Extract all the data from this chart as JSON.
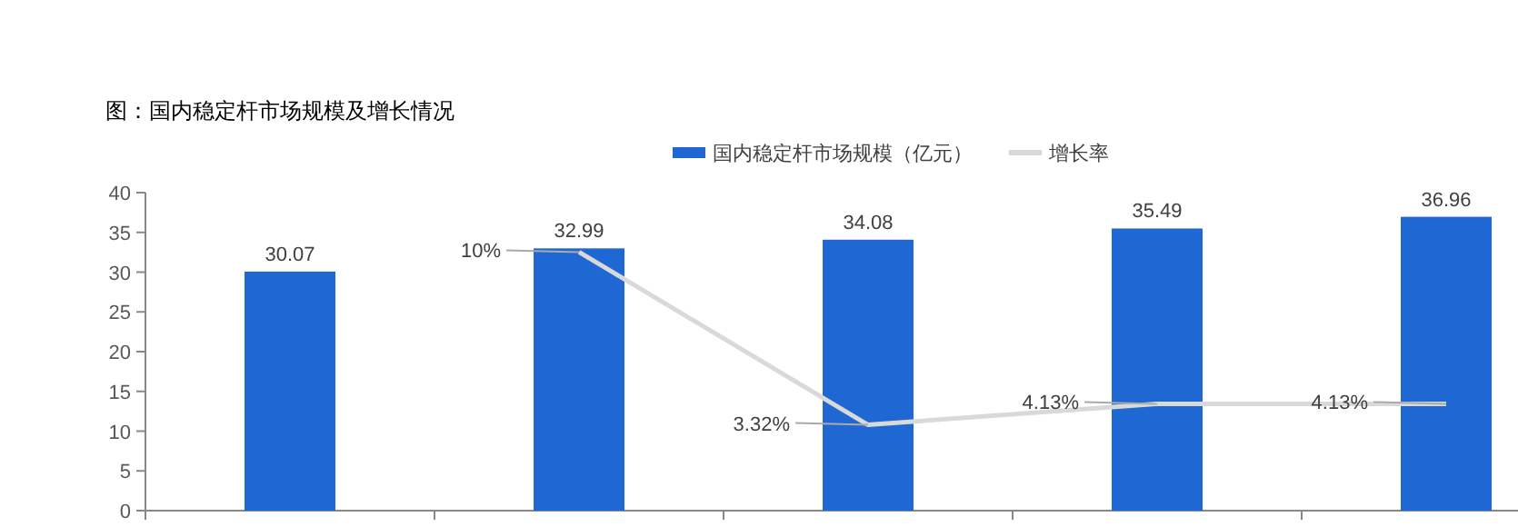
{
  "chart_data": {
    "type": "bar",
    "title": "图：国内稳定杆市场规模及增长情况",
    "categories": [
      null,
      null,
      null,
      null,
      null
    ],
    "series": [
      {
        "name": "国内稳定杆市场规模（亿元）",
        "color": "#1f67d2",
        "values": [
          30.07,
          32.99,
          34.08,
          35.49,
          36.96
        ],
        "value_labels": [
          "30.07",
          "32.99",
          "34.08",
          "35.49",
          "36.96"
        ]
      },
      {
        "name": "增长率",
        "type": "line",
        "axis": "y2",
        "color": "#d9d9d9",
        "values": [
          null,
          10,
          3.32,
          4.13,
          4.13
        ],
        "value_labels": [
          null,
          "10%",
          "3.32%",
          "4.13%",
          "4.13%"
        ]
      }
    ],
    "ylim": [
      0,
      40
    ],
    "yticks": [
      0,
      5,
      10,
      15,
      20,
      25,
      30,
      35,
      40
    ],
    "y2lim": [
      0,
      12.3
    ],
    "tick_labels": "y",
    "legend": "top",
    "grid": false,
    "marker": "none",
    "line_style": "solid"
  }
}
